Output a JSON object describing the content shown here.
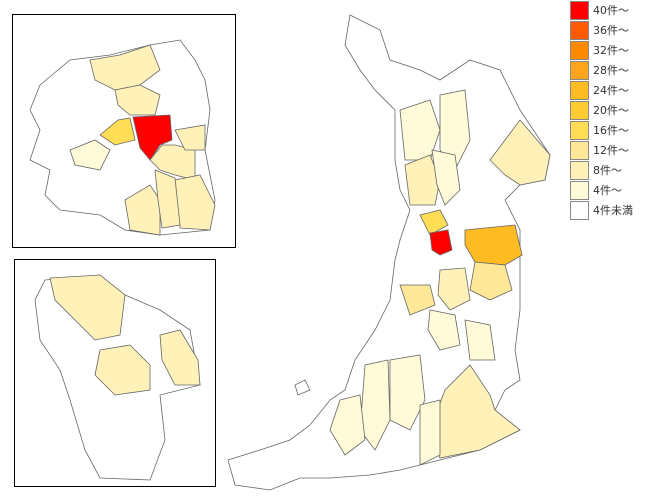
{
  "legend": {
    "items": [
      {
        "label": "40件～",
        "color": "#ff0000"
      },
      {
        "label": "36件～",
        "color": "#ff5a00"
      },
      {
        "label": "32件～",
        "color": "#ff8a00"
      },
      {
        "label": "28件～",
        "color": "#ffa51e"
      },
      {
        "label": "24件～",
        "color": "#ffbb22"
      },
      {
        "label": "20件～",
        "color": "#ffcc33"
      },
      {
        "label": "16件～",
        "color": "#ffde55"
      },
      {
        "label": "12件～",
        "color": "#ffe898"
      },
      {
        "label": "8件～",
        "color": "#fff1b8"
      },
      {
        "label": "4件～",
        "color": "#fffad8"
      },
      {
        "label": "4件未満",
        "color": "#ffffff"
      }
    ]
  }
}
